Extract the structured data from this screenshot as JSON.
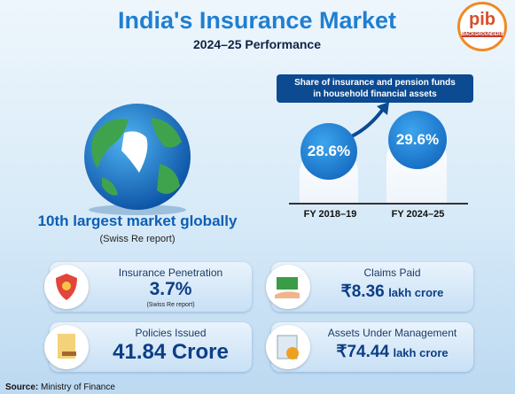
{
  "header": {
    "title": "India's Insurance Market",
    "subtitle": "2024–25 Performance",
    "logo": {
      "text": "pib",
      "tag": "BACKGROUNDERS"
    }
  },
  "globe": {
    "headline": "10th largest market globally",
    "note": "(Swiss Re report)"
  },
  "share": {
    "title": [
      "Share of insurance and pension funds",
      "in household financial assets"
    ],
    "items": [
      {
        "value": "28.6%",
        "label": "FY 2018–19"
      },
      {
        "value": "29.6%",
        "label": "FY 2024–25"
      }
    ]
  },
  "cards": [
    {
      "title": "Insurance Penetration",
      "value": "3.7%",
      "note": "(Swiss Re report)"
    },
    {
      "title": "Claims Paid",
      "value": "₹8.36",
      "unit": "lakh crore"
    },
    {
      "title": "Policies Issued",
      "value": "41.84 Crore"
    },
    {
      "title": "Assets Under Management",
      "value": "₹74.44",
      "unit": "lakh crore"
    }
  ],
  "source": {
    "label": "Source:",
    "text": "Ministry of Finance"
  }
}
